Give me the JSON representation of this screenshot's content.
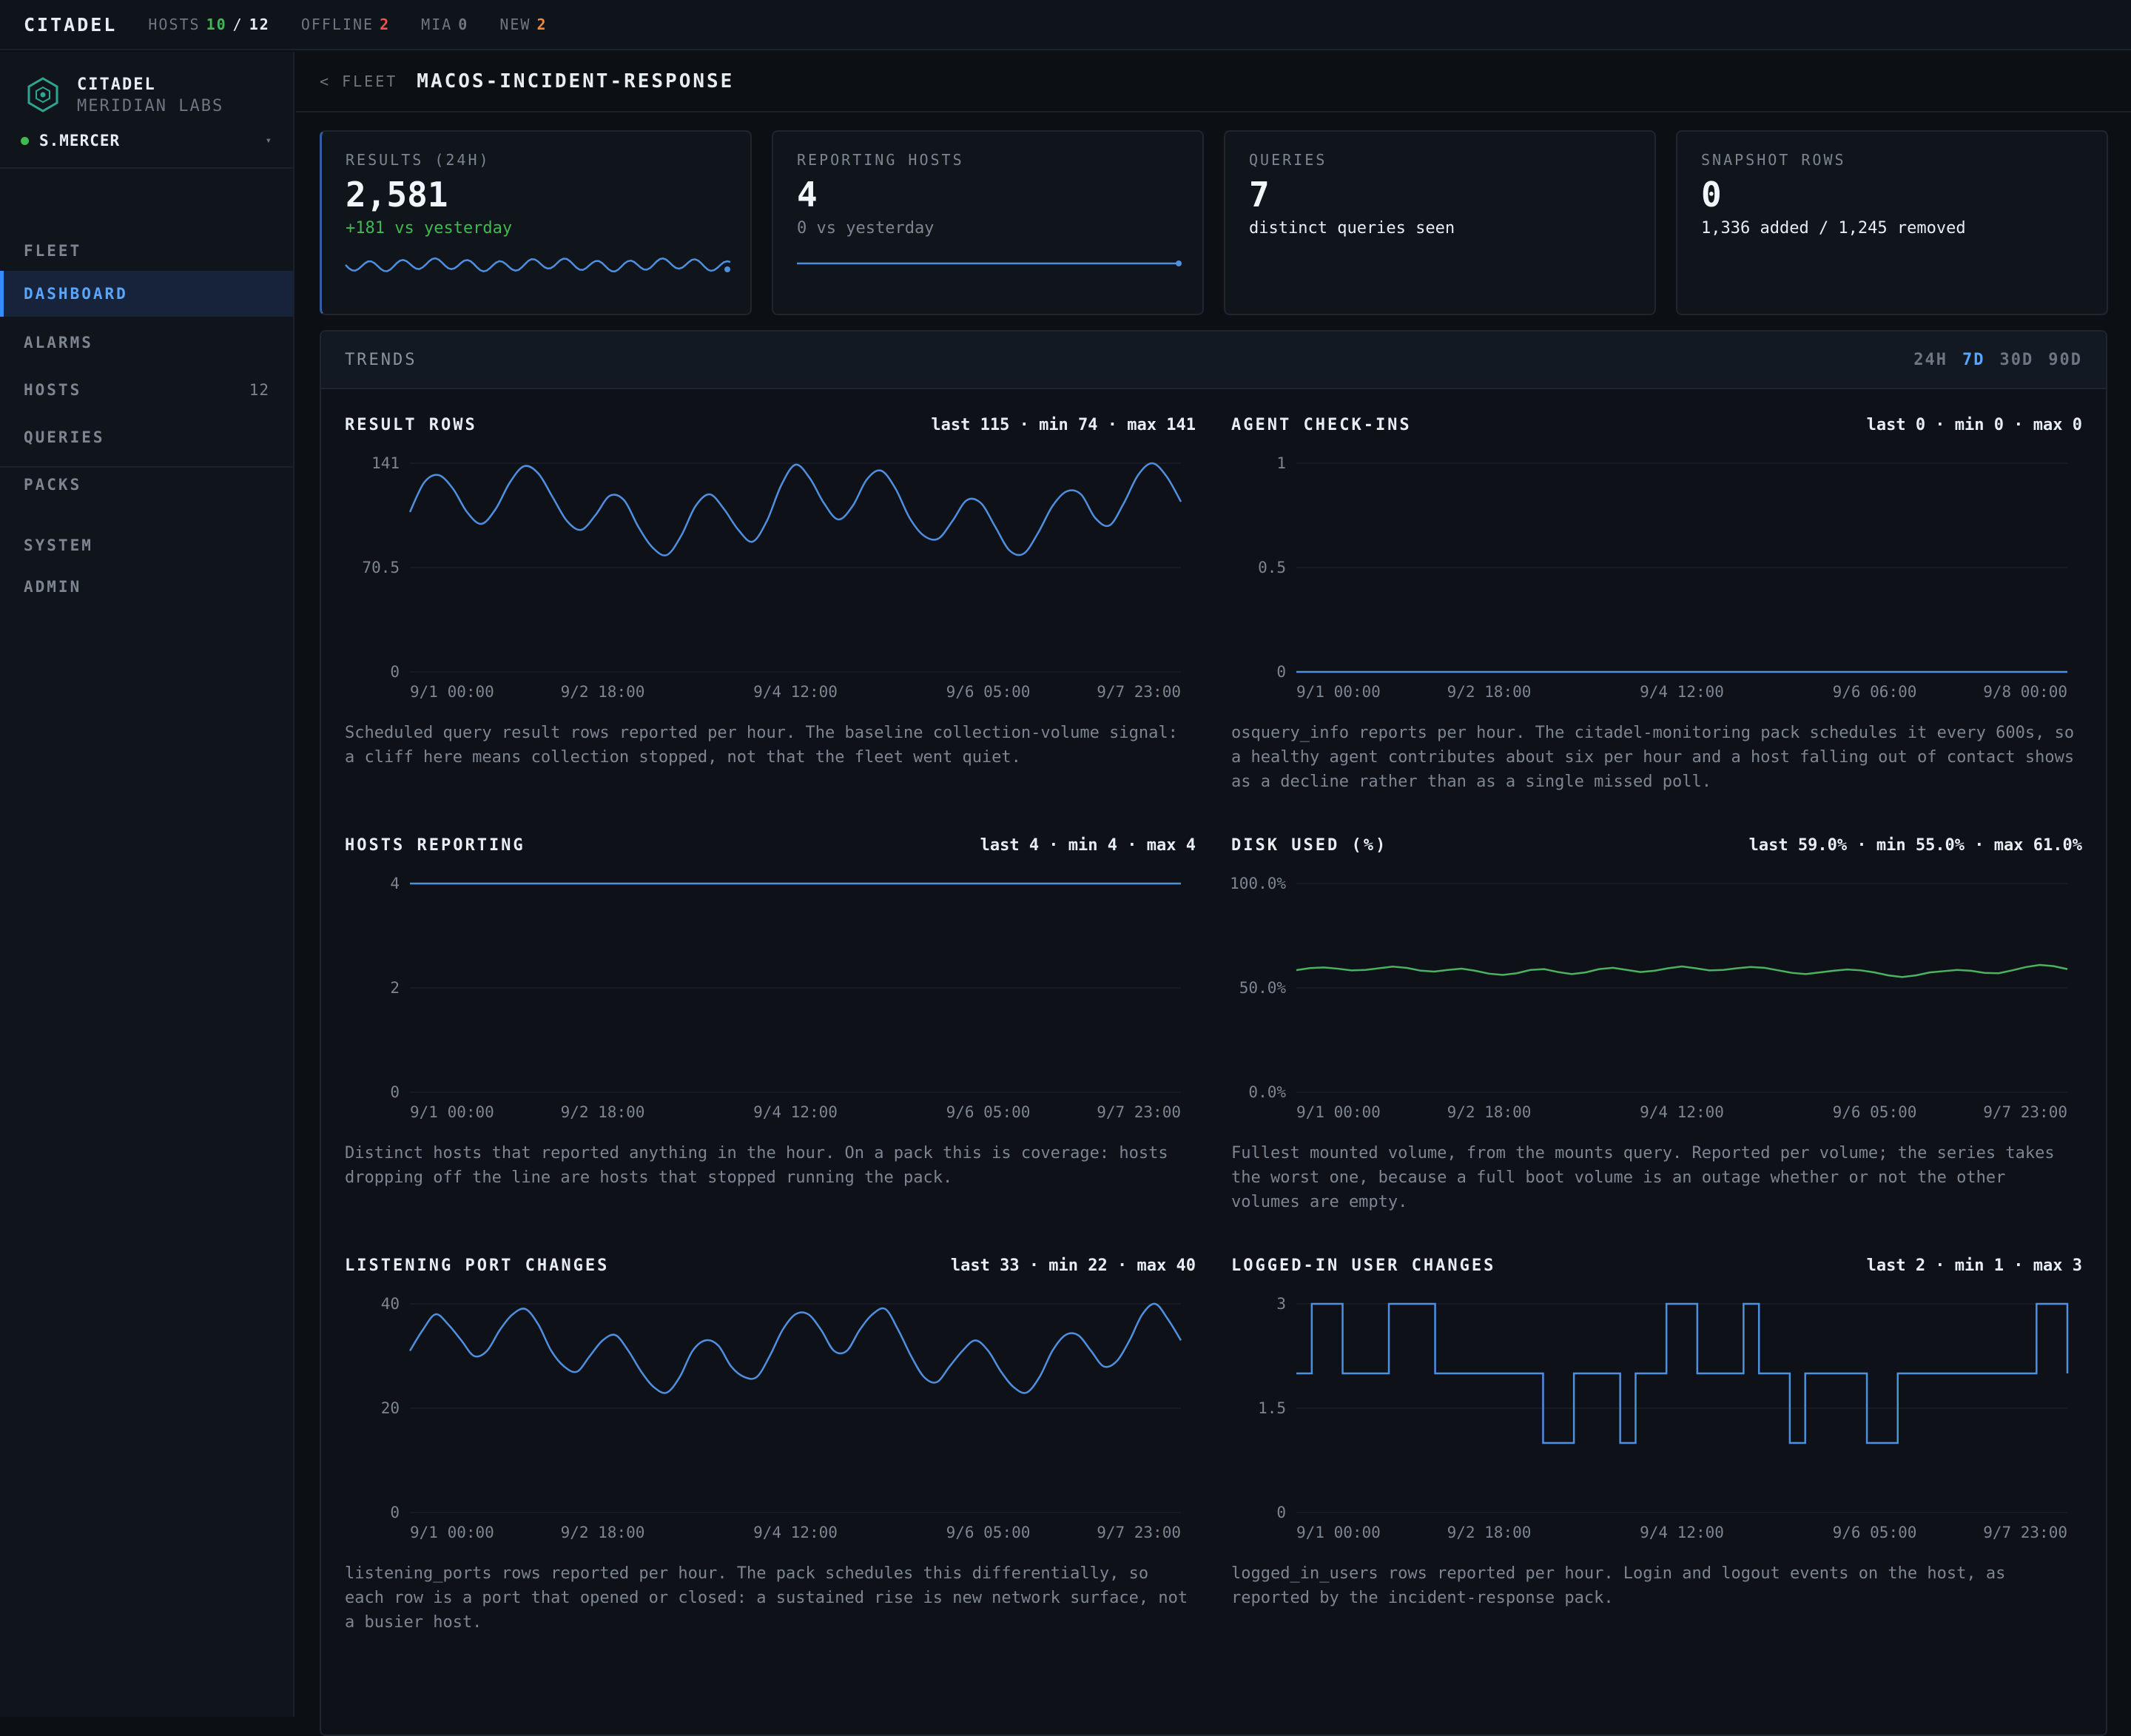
{
  "topbar": {
    "brand": "CITADEL",
    "hosts_label": "HOSTS",
    "hosts_online": "10",
    "hosts_sep": "/",
    "hosts_total": "12",
    "offline_label": "OFFLINE",
    "offline_value": "2",
    "mia_label": "MIA",
    "mia_value": "0",
    "new_label": "NEW",
    "new_value": "2"
  },
  "sidebar": {
    "org_name": "CITADEL",
    "org_sub": "MERIDIAN LABS",
    "user": "S.MERCER",
    "items": [
      {
        "label": "FLEET",
        "count": ""
      },
      {
        "label": "DASHBOARD",
        "count": "",
        "active": true
      },
      {
        "label": "ALARMS",
        "count": ""
      },
      {
        "label": "HOSTS",
        "count": "12"
      },
      {
        "label": "QUERIES",
        "count": ""
      },
      {
        "label": "PACKS",
        "count": ""
      },
      {
        "label": "SYSTEM",
        "count": ""
      },
      {
        "label": "ADMIN",
        "count": ""
      }
    ]
  },
  "header": {
    "crumb": "< FLEET",
    "title": "MACOS-INCIDENT-RESPONSE"
  },
  "cards": [
    {
      "label": "RESULTS (24H)",
      "value": "2,581",
      "sub": "+181 vs yesterday"
    },
    {
      "label": "REPORTING HOSTS",
      "value": "4",
      "sub": "0 vs yesterday"
    },
    {
      "label": "QUERIES",
      "value": "7",
      "sub": "distinct queries seen"
    },
    {
      "label": "SNAPSHOT ROWS",
      "value": "0",
      "sub": "1,336 added / 1,245 removed"
    }
  ],
  "trends": {
    "title": "TRENDS",
    "ranges": [
      "24H",
      "7D",
      "30D",
      "90D"
    ],
    "active_range": "7D"
  },
  "colors": {
    "accent": "#58a6ff",
    "line": "#4f8fe0",
    "disk": "#4bb35f",
    "positive": "#3fb950",
    "danger": "#f85149",
    "warn": "#f0883e"
  },
  "chart_data": [
    {
      "type": "line",
      "title": "RESULT ROWS",
      "stats": "last 115 · min 74 · max 141",
      "ylim": [
        0,
        141
      ],
      "yticks": [
        "141",
        "70.5",
        "0"
      ],
      "xticks": [
        "9/1 00:00",
        "9/2 18:00",
        "9/4 12:00",
        "9/6 05:00",
        "9/7 23:00"
      ],
      "series": [
        {
          "values": [
            108,
            128,
            133,
            124,
            108,
            100,
            110,
            128,
            139,
            134,
            118,
            102,
            96,
            106,
            119,
            116,
            98,
            84,
            79,
            92,
            112,
            120,
            110,
            96,
            88,
            102,
            126,
            140,
            131,
            114,
            103,
            112,
            130,
            136,
            124,
            104,
            92,
            90,
            102,
            116,
            114,
            98,
            82,
            80,
            94,
            112,
            122,
            120,
            104,
            99,
            114,
            133,
            141,
            132,
            115
          ]
        }
      ],
      "desc": "Scheduled query result rows reported per hour. The baseline collection-volume signal: a cliff here means collection stopped, not that the fleet went quiet."
    },
    {
      "type": "line",
      "title": "AGENT CHECK-INS",
      "stats": "last 0 · min 0 · max 0",
      "ylim": [
        0,
        1
      ],
      "yticks": [
        "1",
        "0.5",
        "0"
      ],
      "xticks": [
        "9/1 00:00",
        "9/2 18:00",
        "9/4 12:00",
        "9/6 06:00",
        "9/8 00:00"
      ],
      "series": [
        {
          "values": [
            0,
            0,
            0,
            0,
            0,
            0,
            0,
            0,
            0,
            0
          ]
        }
      ],
      "desc": "osquery_info reports per hour. The citadel-monitoring pack schedules it every 600s, so a healthy agent contributes about six per hour and a host falling out of contact shows as a decline rather than as a single missed poll."
    },
    {
      "type": "line",
      "title": "HOSTS REPORTING",
      "stats": "last 4 · min 4 · max 4",
      "ylim": [
        0,
        4
      ],
      "yticks": [
        "4",
        "2",
        "0"
      ],
      "xticks": [
        "9/1 00:00",
        "9/2 18:00",
        "9/4 12:00",
        "9/6 05:00",
        "9/7 23:00"
      ],
      "series": [
        {
          "values": [
            4,
            4,
            4,
            4,
            4,
            4,
            4,
            4,
            4,
            4
          ]
        }
      ],
      "desc": "Distinct hosts that reported anything in the hour. On a pack this is coverage: hosts dropping off the line are hosts that stopped running the pack."
    },
    {
      "type": "line",
      "title": "DISK USED (%)",
      "stats": "last 59.0% · min 55.0% · max 61.0%",
      "ylim": [
        0,
        100
      ],
      "yticks": [
        "100.0%",
        "50.0%",
        "0.0%"
      ],
      "xticks": [
        "9/1 00:00",
        "9/2 18:00",
        "9/4 12:00",
        "9/6 05:00",
        "9/7 23:00"
      ],
      "series": [
        {
          "values": [
            58.5,
            59.5,
            59.8,
            59.2,
            58.4,
            58.6,
            59.4,
            60.2,
            59.6,
            58.3,
            57.8,
            58.6,
            59.2,
            58.2,
            56.8,
            56.2,
            57.0,
            58.6,
            59.0,
            57.6,
            56.6,
            57.4,
            59.0,
            59.6,
            58.6,
            57.6,
            58.2,
            59.4,
            60.3,
            59.4,
            58.4,
            58.6,
            59.4,
            60.0,
            59.6,
            58.4,
            57.2,
            56.6,
            57.4,
            58.2,
            58.8,
            58.4,
            57.4,
            56.0,
            55.2,
            56.0,
            57.4,
            58.0,
            58.6,
            58.2,
            57.2,
            57.0,
            58.4,
            60.0,
            61.0,
            60.4,
            59.0
          ]
        }
      ],
      "desc": "Fullest mounted volume, from the mounts query. Reported per volume; the series takes the worst one, because a full boot volume is an outage whether or not the other volumes are empty."
    },
    {
      "type": "line",
      "title": "LISTENING PORT CHANGES",
      "stats": "last 33 · min 22 · max 40",
      "ylim": [
        0,
        40
      ],
      "yticks": [
        "40",
        "20",
        "0"
      ],
      "xticks": [
        "9/1 00:00",
        "9/2 18:00",
        "9/4 12:00",
        "9/6 05:00",
        "9/7 23:00"
      ],
      "series": [
        {
          "values": [
            31,
            35,
            38,
            36,
            33,
            30,
            31,
            35,
            38,
            39,
            36,
            31,
            28,
            27,
            30,
            33,
            34,
            31,
            27,
            24,
            23,
            26,
            31,
            33,
            32,
            28,
            26,
            26,
            30,
            35,
            38,
            38,
            35,
            31,
            31,
            35,
            38,
            39,
            35,
            30,
            26,
            25,
            28,
            31,
            33,
            31,
            27,
            24,
            23,
            26,
            31,
            34,
            34,
            31,
            28,
            29,
            33,
            38,
            40,
            37,
            33
          ]
        }
      ],
      "desc": "listening_ports rows reported per hour. The pack schedules this differentially, so each row is a port that opened or closed: a sustained rise is new network surface, not a busier host."
    },
    {
      "type": "line",
      "title": "LOGGED-IN USER CHANGES",
      "stats": "last 2 · min 1 · max 3",
      "ylim": [
        0,
        3
      ],
      "yticks": [
        "3",
        "1.5",
        "0"
      ],
      "xticks": [
        "9/1 00:00",
        "9/2 18:00",
        "9/4 12:00",
        "9/6 05:00",
        "9/7 23:00"
      ],
      "series": [
        {
          "values": [
            2,
            3,
            3,
            2,
            2,
            2,
            3,
            3,
            3,
            2,
            2,
            2,
            2,
            2,
            2,
            2,
            1,
            1,
            2,
            2,
            2,
            1,
            2,
            2,
            3,
            3,
            2,
            2,
            2,
            3,
            2,
            2,
            1,
            2,
            2,
            2,
            2,
            1,
            1,
            2,
            2,
            2,
            2,
            2,
            2,
            2,
            2,
            2,
            3,
            3,
            2
          ]
        }
      ],
      "desc": "logged_in_users rows reported per hour. Login and logout events on the host, as reported by the incident-response pack."
    }
  ]
}
